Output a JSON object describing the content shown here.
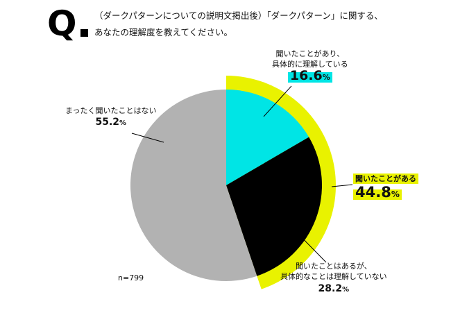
{
  "header": {
    "q_label": "Q",
    "question_line1": "（ダークパターンについての説明文掲出後）「ダークパターン」に関する、",
    "question_line2": "あなたの理解度を教えてください。"
  },
  "labels": {
    "understand_line1": "聞いたことがあり、",
    "understand_line2": "具体的に理解している",
    "understand_pct": "16.6",
    "heard_total_label": "聞いたことがある",
    "heard_total_pct": "44.8",
    "heard_only_line1": "聞いたことはあるが、",
    "heard_only_line2": "具体的なことは理解していない",
    "heard_only_pct": "28.2",
    "never_label": "まったく聞いたことはない",
    "never_pct": "55.2",
    "unit": "%",
    "n": "n=799"
  },
  "colors": {
    "understand": "#00e5e5",
    "heard_only": "#000000",
    "never": "#b2b2b2",
    "heard_total_ring": "#e9f200"
  },
  "chart_data": {
    "type": "pie",
    "slices": [
      {
        "label": "聞いたことがあり、具体的に理解している",
        "value": 16.6
      },
      {
        "label": "聞いたことはあるが、具体的なことは理解していない",
        "value": 28.2
      },
      {
        "label": "まったく聞いたことはない",
        "value": 55.2
      }
    ],
    "group": {
      "label": "聞いたことがある",
      "value": 44.8
    },
    "n": "n=799"
  }
}
